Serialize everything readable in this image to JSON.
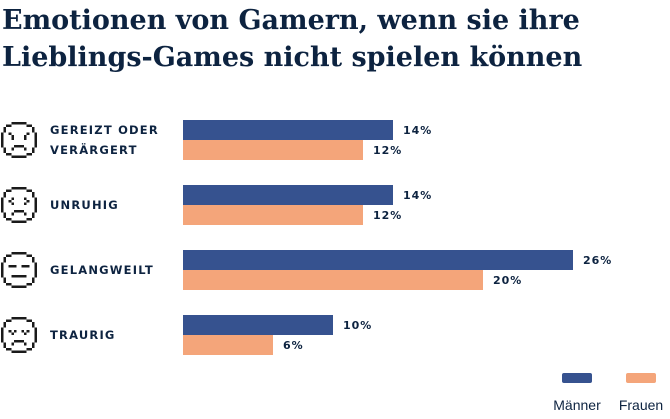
{
  "title": "Emotionen von Gamern, wenn sie ihre Lieblings-Games nicht spielen können",
  "legend": [
    {
      "name": "Männer",
      "color": "#36528f"
    },
    {
      "name": "Frauen",
      "color": "#f4a57a"
    }
  ],
  "categories": [
    {
      "line1": "GEREIZT ODER",
      "line2": "VERÄRGERT",
      "icon": "angry-face-icon"
    },
    {
      "line1": "UNRUHIG",
      "line2": "",
      "icon": "worried-face-icon"
    },
    {
      "line1": "GELANGWEILT",
      "line2": "",
      "icon": "neutral-face-icon"
    },
    {
      "line1": "TRAURIG",
      "line2": "",
      "icon": "sad-face-icon"
    }
  ],
  "chart_data": {
    "type": "bar",
    "orientation": "horizontal",
    "title": "Emotionen von Gamern, wenn sie ihre Lieblings-Games nicht spielen können",
    "categories": [
      "GEREIZT ODER VERÄRGERT",
      "UNRUHIG",
      "GELANGWEILT",
      "TRAURIG"
    ],
    "series": [
      {
        "name": "Männer",
        "values": [
          14,
          14,
          26,
          10
        ],
        "labels": [
          "14%",
          "14%",
          "26%",
          "10%"
        ],
        "color": "#36528f"
      },
      {
        "name": "Frauen",
        "values": [
          12,
          12,
          20,
          6
        ],
        "labels": [
          "12%",
          "12%",
          "20%",
          "6%"
        ],
        "color": "#f4a57a"
      }
    ],
    "unit": "%",
    "xlim": [
      0,
      26
    ],
    "grid": false,
    "legend_position": "bottom-right"
  }
}
